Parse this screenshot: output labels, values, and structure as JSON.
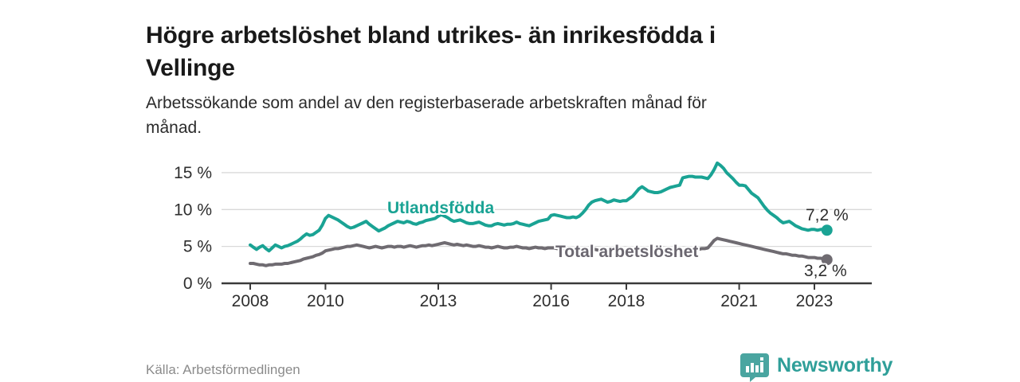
{
  "header": {
    "title_lines": [
      "Högre arbetslöshet bland utrikes- än inrikesfödda i",
      "Vellinge"
    ],
    "subtitle_lines": [
      "Arbetssökande som andel av den registerbaserade arbetskraften månad för",
      "månad."
    ]
  },
  "footer": {
    "source": "Källa: Arbetsförmedlingen",
    "brand_name": "Newsworthy"
  },
  "colors": {
    "accent_teal": "#1aa394",
    "line_gray": "#6f6b71",
    "grid": "#d9d9d9",
    "axis": "#3a3a3a",
    "logo_teal": "#4aa5a0"
  },
  "chart_data": {
    "type": "line",
    "title": "Högre arbetslöshet bland utrikes- än inrikesfödda i Vellinge",
    "subtitle": "Arbetssökande som andel av den registerbaserade arbetskraften månad för månad.",
    "source": "Källa: Arbetsförmedlingen",
    "x_unit": "month",
    "x_start": "2008-01",
    "x_end": "2023-05",
    "ylim": [
      0,
      17.5
    ],
    "grid": "horizontal",
    "legend_position": "inline-labels",
    "y_ticks": [
      {
        "value": 0,
        "label": "0 %"
      },
      {
        "value": 5,
        "label": "5 %"
      },
      {
        "value": 10,
        "label": "10 %"
      },
      {
        "value": 15,
        "label": "15 %"
      }
    ],
    "x_ticks": [
      {
        "year": 2008,
        "label": "2008"
      },
      {
        "year": 2010,
        "label": "2010"
      },
      {
        "year": 2013,
        "label": "2013"
      },
      {
        "year": 2016,
        "label": "2016"
      },
      {
        "year": 2018,
        "label": "2018"
      },
      {
        "year": 2021,
        "label": "2021"
      },
      {
        "year": 2023,
        "label": "2023"
      }
    ],
    "series": [
      {
        "name": "Utlandsfödda",
        "color": "#1aa394",
        "end_value": 7.2,
        "end_value_label": "7,2 %",
        "values": [
          5.2,
          4.9,
          4.6,
          4.9,
          5.1,
          4.7,
          4.4,
          4.8,
          5.2,
          5.0,
          4.8,
          5.0,
          5.1,
          5.3,
          5.5,
          5.7,
          6.0,
          6.4,
          6.7,
          6.5,
          6.6,
          6.9,
          7.2,
          7.9,
          8.8,
          9.2,
          9.0,
          8.8,
          8.6,
          8.3,
          8.0,
          7.7,
          7.5,
          7.6,
          7.8,
          8.0,
          8.2,
          8.4,
          8.0,
          7.7,
          7.4,
          7.1,
          7.3,
          7.5,
          7.8,
          8.0,
          8.2,
          8.4,
          8.3,
          8.2,
          8.4,
          8.3,
          8.1,
          8.0,
          8.2,
          8.3,
          8.5,
          8.6,
          8.7,
          8.8,
          9.1,
          9.3,
          9.1,
          8.9,
          8.6,
          8.4,
          8.5,
          8.6,
          8.4,
          8.2,
          8.1,
          8.1,
          8.2,
          8.3,
          8.1,
          7.9,
          7.8,
          7.8,
          8.0,
          8.1,
          8.0,
          7.9,
          8.0,
          8.0,
          8.1,
          8.3,
          8.1,
          8.0,
          7.9,
          7.8,
          8.0,
          8.2,
          8.4,
          8.5,
          8.6,
          8.7,
          9.2,
          9.3,
          9.2,
          9.1,
          9.0,
          8.9,
          8.9,
          9.0,
          8.9,
          9.1,
          9.5,
          10.0,
          10.6,
          11.0,
          11.2,
          11.3,
          11.4,
          11.2,
          11.0,
          11.1,
          11.3,
          11.2,
          11.1,
          11.2,
          11.2,
          11.5,
          11.8,
          12.3,
          12.8,
          13.1,
          12.8,
          12.5,
          12.4,
          12.3,
          12.3,
          12.4,
          12.6,
          12.8,
          13.0,
          13.1,
          13.2,
          13.3,
          14.3,
          14.4,
          14.5,
          14.5,
          14.4,
          14.4,
          14.4,
          14.3,
          14.2,
          14.7,
          15.4,
          16.3,
          16.0,
          15.6,
          15.0,
          14.6,
          14.2,
          13.7,
          13.3,
          13.3,
          13.2,
          12.7,
          12.2,
          11.9,
          11.6,
          11.0,
          10.4,
          9.9,
          9.5,
          9.2,
          8.9,
          8.5,
          8.2,
          8.3,
          8.4,
          8.1,
          7.8,
          7.6,
          7.4,
          7.3,
          7.2,
          7.3,
          7.3,
          7.2,
          7.3,
          7.3,
          7.2
        ]
      },
      {
        "name": "Total arbetslöshet",
        "color": "#6f6b71",
        "end_value": 3.2,
        "end_value_label": "3,2 %",
        "values": [
          2.7,
          2.7,
          2.6,
          2.5,
          2.5,
          2.4,
          2.5,
          2.5,
          2.6,
          2.6,
          2.6,
          2.7,
          2.7,
          2.8,
          2.9,
          3.0,
          3.1,
          3.3,
          3.4,
          3.5,
          3.6,
          3.8,
          3.9,
          4.1,
          4.4,
          4.5,
          4.6,
          4.7,
          4.7,
          4.8,
          4.9,
          5.0,
          5.0,
          5.1,
          5.2,
          5.1,
          5.0,
          4.9,
          4.8,
          4.9,
          5.0,
          4.9,
          4.8,
          4.9,
          5.0,
          5.0,
          4.9,
          5.0,
          5.0,
          4.9,
          5.0,
          5.1,
          5.0,
          4.9,
          5.0,
          5.1,
          5.1,
          5.2,
          5.1,
          5.2,
          5.3,
          5.4,
          5.5,
          5.4,
          5.3,
          5.2,
          5.3,
          5.2,
          5.1,
          5.2,
          5.1,
          5.0,
          5.0,
          5.1,
          5.0,
          4.9,
          4.9,
          4.8,
          4.9,
          5.0,
          4.9,
          4.8,
          4.8,
          4.9,
          4.9,
          5.0,
          4.9,
          4.8,
          4.8,
          4.7,
          4.8,
          4.9,
          4.8,
          4.8,
          4.7,
          4.8,
          4.8,
          4.8,
          4.7,
          4.7,
          4.6,
          4.6,
          4.7,
          4.7,
          4.6,
          4.6,
          4.6,
          4.7,
          4.7,
          4.6,
          4.6,
          4.5,
          4.6,
          4.6,
          4.5,
          4.6,
          4.6,
          4.5,
          4.5,
          4.6,
          4.6,
          4.5,
          4.5,
          4.6,
          4.6,
          4.5,
          4.4,
          4.5,
          4.5,
          4.4,
          4.4,
          4.5,
          4.5,
          4.4,
          4.4,
          4.5,
          4.5,
          4.4,
          4.4,
          4.5,
          4.5,
          4.4,
          4.5,
          4.6,
          4.7,
          4.7,
          4.8,
          5.3,
          5.8,
          6.1,
          6.0,
          5.9,
          5.8,
          5.7,
          5.6,
          5.5,
          5.4,
          5.3,
          5.2,
          5.1,
          5.0,
          4.9,
          4.8,
          4.7,
          4.6,
          4.5,
          4.4,
          4.3,
          4.2,
          4.1,
          4.0,
          4.0,
          3.9,
          3.8,
          3.8,
          3.7,
          3.7,
          3.6,
          3.5,
          3.5,
          3.5,
          3.4,
          3.4,
          3.3,
          3.2
        ]
      }
    ]
  }
}
